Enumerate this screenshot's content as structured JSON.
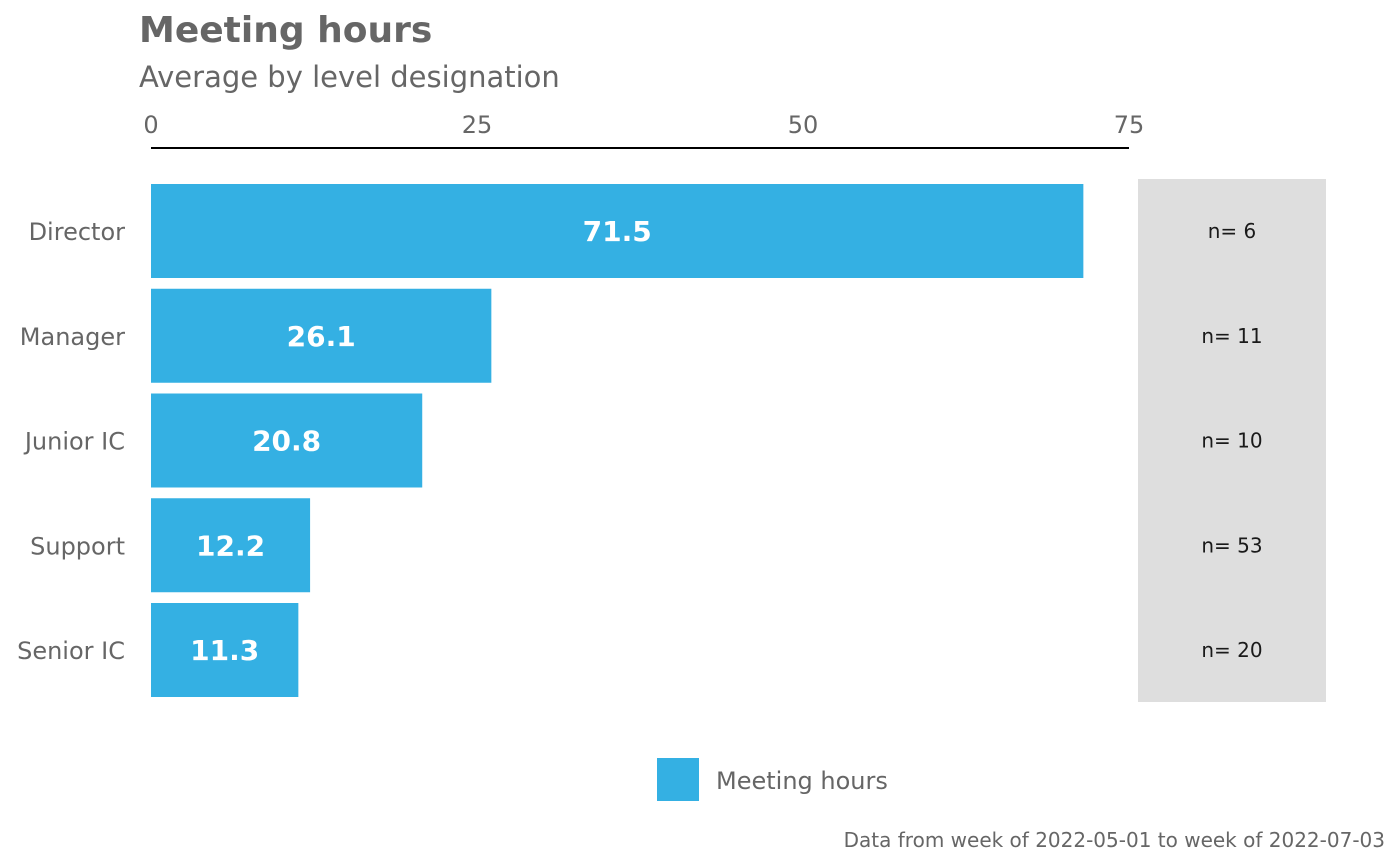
{
  "chart_data": {
    "type": "bar",
    "orientation": "horizontal",
    "title": "Meeting hours",
    "subtitle": "Average by level designation",
    "categories": [
      "Director",
      "Manager",
      "Junior IC",
      "Support",
      "Senior IC"
    ],
    "values": [
      71.5,
      26.1,
      20.8,
      12.2,
      11.3
    ],
    "value_labels": [
      "71.5",
      "26.1",
      "20.8",
      "12.2",
      "11.3"
    ],
    "n_labels": [
      "n= 6",
      "n= 11",
      "n= 10",
      "n= 53",
      "n= 20"
    ],
    "xlim": [
      0,
      75
    ],
    "x_ticks": [
      0,
      25,
      50,
      75
    ],
    "x_tick_labels": [
      "0",
      "25",
      "50",
      "75"
    ],
    "axis_position": "top",
    "grid": false,
    "legend": [
      "Meeting hours"
    ],
    "legend_position": "bottom",
    "caption": "Data from week of 2022-05-01 to week of 2022-07-03",
    "colors": {
      "bar": "#34b0e3",
      "n_panel": "#dedede",
      "text": "#666666"
    }
  }
}
